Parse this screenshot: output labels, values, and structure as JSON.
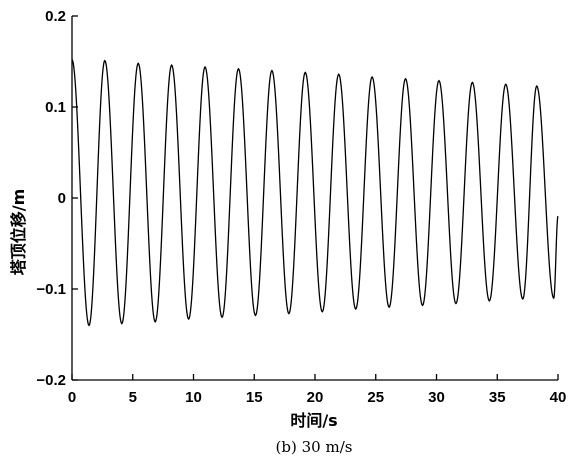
{
  "chart_data": {
    "type": "line",
    "title": "",
    "caption": "(b) 30 m/s",
    "xlabel": "时间/s",
    "ylabel": "塔顶位移/m",
    "xlim": [
      0,
      40
    ],
    "ylim": [
      -0.2,
      0.2
    ],
    "xticks": [
      0,
      5,
      10,
      15,
      20,
      25,
      30,
      35,
      40
    ],
    "yticks": [
      -0.2,
      -0.1,
      0,
      0.1,
      0.2
    ],
    "ytick_labels": [
      "−0.2",
      "−0.1",
      "0",
      "0.1",
      "0.2"
    ],
    "grid": false,
    "line_color": "#000000",
    "series": [
      {
        "peaks": [
          {
            "t": 2.7,
            "v": 0.151
          },
          {
            "t": 5.45,
            "v": 0.148
          },
          {
            "t": 8.2,
            "v": 0.146
          },
          {
            "t": 10.95,
            "v": 0.144
          },
          {
            "t": 13.7,
            "v": 0.142
          },
          {
            "t": 16.45,
            "v": 0.14
          },
          {
            "t": 19.2,
            "v": 0.138
          },
          {
            "t": 21.95,
            "v": 0.136
          },
          {
            "t": 24.7,
            "v": 0.133
          },
          {
            "t": 27.45,
            "v": 0.131
          },
          {
            "t": 30.2,
            "v": 0.129
          },
          {
            "t": 32.95,
            "v": 0.127
          },
          {
            "t": 35.7,
            "v": 0.125
          },
          {
            "t": 38.25,
            "v": 0.123
          }
        ],
        "troughs": [
          {
            "t": 1.4,
            "v": -0.14
          },
          {
            "t": 4.1,
            "v": -0.138
          },
          {
            "t": 6.85,
            "v": -0.136
          },
          {
            "t": 9.6,
            "v": -0.133
          },
          {
            "t": 12.35,
            "v": -0.131
          },
          {
            "t": 15.1,
            "v": -0.129
          },
          {
            "t": 17.85,
            "v": -0.127
          },
          {
            "t": 20.6,
            "v": -0.125
          },
          {
            "t": 23.35,
            "v": -0.122
          },
          {
            "t": 26.1,
            "v": -0.12
          },
          {
            "t": 28.85,
            "v": -0.118
          },
          {
            "t": 31.6,
            "v": -0.116
          },
          {
            "t": 34.35,
            "v": -0.113
          },
          {
            "t": 37.1,
            "v": -0.111
          },
          {
            "t": 39.65,
            "v": -0.11
          }
        ],
        "start": {
          "t": 0,
          "v": 0.152
        },
        "end": {
          "t": 40,
          "v": -0.02
        }
      }
    ]
  }
}
